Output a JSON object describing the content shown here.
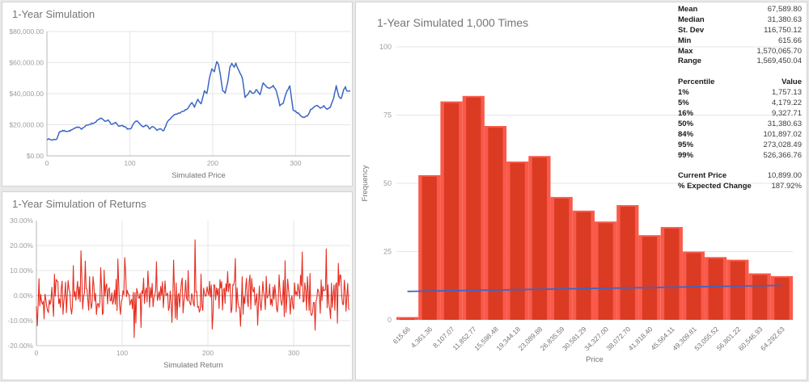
{
  "stats_panel": {
    "summary": [
      {
        "label": "Mean",
        "value": "67,589.80"
      },
      {
        "label": "Median",
        "value": "31,380.63"
      },
      {
        "label": "St. Dev",
        "value": "116,750.12"
      },
      {
        "label": "Min",
        "value": "615.66"
      },
      {
        "label": "Max",
        "value": "1,570,065.70"
      },
      {
        "label": "Range",
        "value": "1,569,450.04"
      }
    ],
    "percentiles_header": {
      "label": "Percentile",
      "value": "Value"
    },
    "percentiles": [
      {
        "label": "1%",
        "value": "1,757.13"
      },
      {
        "label": "5%",
        "value": "4,179.22"
      },
      {
        "label": "16%",
        "value": "9,327.71"
      },
      {
        "label": "50%",
        "value": "31,380.63"
      },
      {
        "label": "84%",
        "value": "101,897.02"
      },
      {
        "label": "95%",
        "value": "273,028.49"
      },
      {
        "label": "99%",
        "value": "526,366.76"
      }
    ],
    "footer": [
      {
        "label": "Current Price",
        "value": "10,899.00"
      },
      {
        "label": "% Expected Change",
        "value": "187.92%"
      }
    ]
  },
  "chart_data": [
    {
      "id": "price",
      "type": "line",
      "title": "1-Year Simulation",
      "xlabel": "Simulated Price",
      "ylabel": "",
      "xlim": [
        0,
        366
      ],
      "ylim": [
        0,
        80000
      ],
      "x_ticks": [
        0,
        100,
        200,
        300
      ],
      "y_ticks": [
        {
          "v": 0,
          "label": "$0.00"
        },
        {
          "v": 20000,
          "label": "$20,000.00"
        },
        {
          "v": 40000,
          "label": "$40,000.00"
        },
        {
          "v": 60000,
          "label": "$60,000.00"
        },
        {
          "v": 80000,
          "label": "$80,000.00"
        }
      ],
      "line_color": "#3b66c5",
      "grid": "both",
      "seed": 7,
      "jitter": 350,
      "keypoints": [
        [
          0,
          10900
        ],
        [
          6,
          10300
        ],
        [
          12,
          10800
        ],
        [
          15,
          15500
        ],
        [
          20,
          16200
        ],
        [
          26,
          15800
        ],
        [
          32,
          17200
        ],
        [
          38,
          18800
        ],
        [
          42,
          17400
        ],
        [
          47,
          19300
        ],
        [
          52,
          20500
        ],
        [
          57,
          21200
        ],
        [
          62,
          23200
        ],
        [
          66,
          24300
        ],
        [
          70,
          21900
        ],
        [
          74,
          22800
        ],
        [
          78,
          20300
        ],
        [
          83,
          21200
        ],
        [
          87,
          18900
        ],
        [
          91,
          19800
        ],
        [
          97,
          17500
        ],
        [
          101,
          17100
        ],
        [
          105,
          21000
        ],
        [
          108,
          22600
        ],
        [
          112,
          20700
        ],
        [
          116,
          18400
        ],
        [
          120,
          19600
        ],
        [
          124,
          17500
        ],
        [
          128,
          18900
        ],
        [
          133,
          16600
        ],
        [
          137,
          17800
        ],
        [
          141,
          16000
        ],
        [
          145,
          21800
        ],
        [
          150,
          24500
        ],
        [
          154,
          26500
        ],
        [
          160,
          27600
        ],
        [
          165,
          28800
        ],
        [
          170,
          30500
        ],
        [
          175,
          34400
        ],
        [
          178,
          31400
        ],
        [
          182,
          36200
        ],
        [
          186,
          33200
        ],
        [
          190,
          41800
        ],
        [
          193,
          39900
        ],
        [
          196,
          50000
        ],
        [
          199,
          55700
        ],
        [
          202,
          54500
        ],
        [
          205,
          60400
        ],
        [
          207,
          58500
        ],
        [
          209,
          53000
        ],
        [
          212,
          42000
        ],
        [
          215,
          40300
        ],
        [
          218,
          47100
        ],
        [
          221,
          57500
        ],
        [
          223,
          59400
        ],
        [
          226,
          57000
        ],
        [
          228,
          59300
        ],
        [
          231,
          55600
        ],
        [
          234,
          52000
        ],
        [
          236,
          49500
        ],
        [
          239,
          37500
        ],
        [
          242,
          39200
        ],
        [
          245,
          41600
        ],
        [
          249,
          40100
        ],
        [
          253,
          42700
        ],
        [
          257,
          39200
        ],
        [
          261,
          47200
        ],
        [
          265,
          44200
        ],
        [
          269,
          43600
        ],
        [
          273,
          45100
        ],
        [
          277,
          41600
        ],
        [
          281,
          32300
        ],
        [
          285,
          34000
        ],
        [
          289,
          41000
        ],
        [
          293,
          45100
        ],
        [
          297,
          29700
        ],
        [
          302,
          27900
        ],
        [
          307,
          25300
        ],
        [
          311,
          24800
        ],
        [
          315,
          26200
        ],
        [
          318,
          29600
        ],
        [
          322,
          31400
        ],
        [
          326,
          32300
        ],
        [
          330,
          30500
        ],
        [
          334,
          32200
        ],
        [
          338,
          29900
        ],
        [
          342,
          31400
        ],
        [
          346,
          37400
        ],
        [
          349,
          45100
        ],
        [
          352,
          38400
        ],
        [
          355,
          36600
        ],
        [
          358,
          42500
        ],
        [
          360,
          44200
        ],
        [
          362,
          41600
        ],
        [
          366,
          41900
        ]
      ]
    },
    {
      "id": "returns",
      "type": "line",
      "title": "1-Year Simulation of Returns",
      "xlabel": "Simulated Return",
      "ylabel": "",
      "xlim": [
        0,
        366
      ],
      "ylim": [
        -20,
        30
      ],
      "x_ticks": [
        0,
        100,
        200,
        300
      ],
      "y_ticks": [
        {
          "v": 30,
          "label": "30.00%"
        },
        {
          "v": 20,
          "label": "20.00%"
        },
        {
          "v": 10,
          "label": "10.00%"
        },
        {
          "v": 0,
          "label": "0.00%"
        },
        {
          "v": -10,
          "label": "-10.00%"
        },
        {
          "v": -20,
          "label": "-20.00%"
        }
      ],
      "line_color": "#e62e21",
      "grid": "both",
      "seed": 13,
      "n_points": 366,
      "noise_std": 4.3,
      "clamp": [
        -18,
        23
      ],
      "spikes": [
        [
          52,
          17.9
        ],
        [
          57,
          13.8
        ],
        [
          95,
          14.6
        ],
        [
          103,
          15.2
        ],
        [
          114,
          -16.8
        ],
        [
          122,
          -12.8
        ],
        [
          140,
          13.5
        ],
        [
          160,
          14.2
        ],
        [
          185,
          22.3
        ],
        [
          205,
          -13.4
        ],
        [
          232,
          14.8
        ],
        [
          238,
          -12.3
        ],
        [
          258,
          -11.8
        ],
        [
          290,
          13.9
        ],
        [
          310,
          17.4
        ],
        [
          325,
          -13.8
        ],
        [
          338,
          18.7
        ],
        [
          352,
          12.9
        ]
      ]
    },
    {
      "id": "histogram",
      "type": "bar",
      "title": "1-Year Simulated 1,000 Times",
      "xlabel": "Price",
      "ylabel": "Frequency",
      "ylim": [
        0,
        100
      ],
      "y_ticks": [
        0,
        25,
        50,
        75,
        100
      ],
      "categories": [
        "615.66",
        "4,361.36",
        "8,107.07",
        "11,852.77",
        "15,598.48",
        "19,344.18",
        "23,089.88",
        "26,835.59",
        "30,581.29",
        "34,327.00",
        "38,072.70",
        "41,818.40",
        "45,564.11",
        "49,309.81",
        "53,055.52",
        "56,801.22",
        "60,546.93",
        "64,292.63"
      ],
      "values": [
        1,
        53,
        80,
        82,
        71,
        58,
        60,
        45,
        40,
        36,
        42,
        31,
        34,
        25,
        23,
        22,
        17,
        16
      ],
      "bar_color": "#db3a23",
      "bar_edge_color": "#f95a4a",
      "trend_line": {
        "color": "#3b66c5",
        "start": 10.4,
        "end": 12.6
      }
    }
  ]
}
